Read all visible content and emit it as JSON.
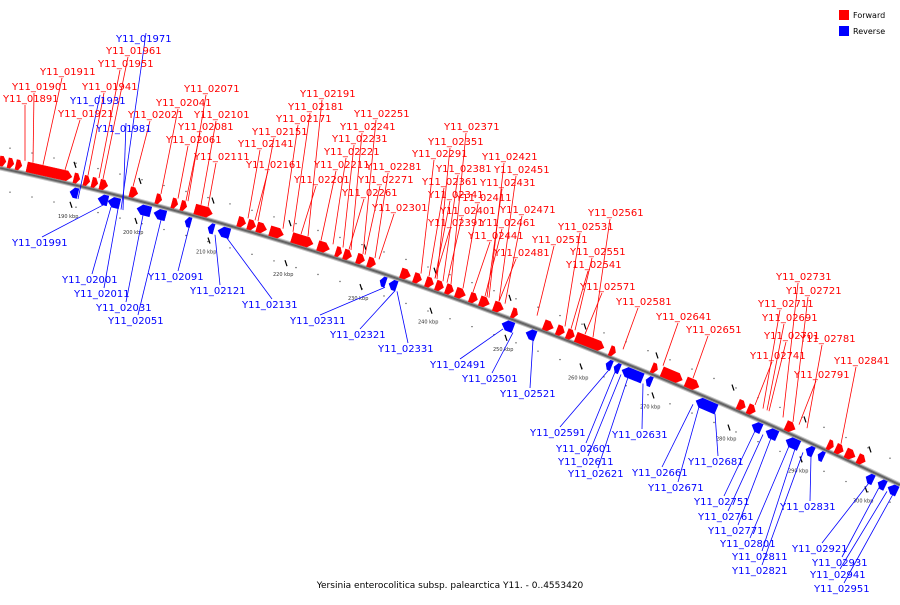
{
  "caption": "Yersinia enterocolitica subsp. palearctica Y11. - 0..4553420",
  "legend": [
    {
      "label": "Forward",
      "color": "#ff0000"
    },
    {
      "label": "Reverse",
      "color": "#0000ff"
    }
  ],
  "colors": {
    "forward": "#ff0000",
    "reverse": "#0000ff",
    "backbone": "#808080"
  },
  "ticks": [
    "190 kbp",
    "200 kbp",
    "210 kbp",
    "220 kbp",
    "230 kbp",
    "240 kbp",
    "250 kbp",
    "260 kbp",
    "270 kbp",
    "280 kbp",
    "290 kbp",
    "300 kbp"
  ],
  "forward_labels": [
    "Y11_01891",
    "Y11_01901",
    "Y11_01911",
    "Y11_01921",
    "Y11_01941",
    "Y11_01951",
    "Y11_01961",
    "Y11_02021",
    "Y11_02041",
    "Y11_02061",
    "Y11_02071",
    "Y11_02081",
    "Y11_02101",
    "Y11_02111",
    "Y11_02141",
    "Y11_02151",
    "Y11_02161",
    "Y11_02171",
    "Y11_02181",
    "Y11_02191",
    "Y11_02201",
    "Y11_02211",
    "Y11_02221",
    "Y11_02231",
    "Y11_02241",
    "Y11_02251",
    "Y11_02261",
    "Y11_02271",
    "Y11_02281",
    "Y11_02291",
    "Y11_02301",
    "Y11_02341",
    "Y11_02351",
    "Y11_02361",
    "Y11_02371",
    "Y11_02381",
    "Y11_02391",
    "Y11_02401",
    "Y11_02411",
    "Y11_02421",
    "Y11_02431",
    "Y11_02441",
    "Y11_02451",
    "Y11_02461",
    "Y11_02471",
    "Y11_02481",
    "Y11_02511",
    "Y11_02531",
    "Y11_02541",
    "Y11_02551",
    "Y11_02561",
    "Y11_02571",
    "Y11_02581",
    "Y11_02641",
    "Y11_02651",
    "Y11_02691",
    "Y11_02701",
    "Y11_02711",
    "Y11_02721",
    "Y11_02731",
    "Y11_02741",
    "Y11_02781",
    "Y11_02791",
    "Y11_02841"
  ],
  "reverse_labels": [
    "Y11_01931",
    "Y11_01971",
    "Y11_01981",
    "Y11_01991",
    "Y11_02001",
    "Y11_02011",
    "Y11_02031",
    "Y11_02051",
    "Y11_02091",
    "Y11_02121",
    "Y11_02131",
    "Y11_02311",
    "Y11_02321",
    "Y11_02331",
    "Y11_02491",
    "Y11_02501",
    "Y11_02521",
    "Y11_02591",
    "Y11_02601",
    "Y11_02611",
    "Y11_02621",
    "Y11_02631",
    "Y11_02661",
    "Y11_02671",
    "Y11_02681",
    "Y11_02751",
    "Y11_02761",
    "Y11_02771",
    "Y11_02801",
    "Y11_02811",
    "Y11_02821",
    "Y11_02831",
    "Y11_02921",
    "Y11_02931",
    "Y11_02941",
    "Y11_02951"
  ]
}
